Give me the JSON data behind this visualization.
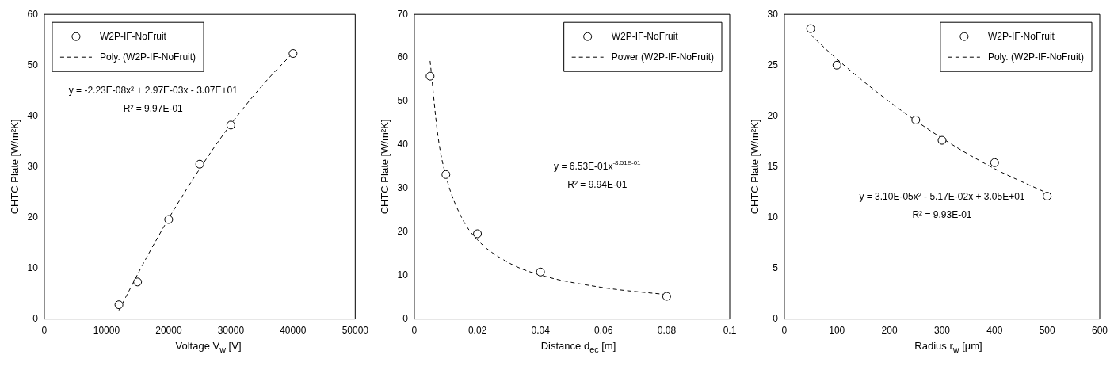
{
  "chart_data": [
    {
      "type": "scatter",
      "xlabel": "Voltage V$_{w}$ [V]",
      "ylabel": "CHTC Plate [W/m²K]",
      "xlim": [
        0,
        50000
      ],
      "xticks": [
        0,
        10000,
        20000,
        30000,
        40000,
        50000
      ],
      "ylim": [
        0,
        60
      ],
      "yticks": [
        0,
        10,
        20,
        30,
        40,
        50,
        60
      ],
      "grid": false,
      "legend": "top left",
      "annotations": [
        "y = -2.23E-08x² + 2.97E-03x - 3.07E+01",
        "R² = 9.97E-01"
      ],
      "series": [
        {
          "name": "W2P-IF-NoFruit",
          "type": "scatter",
          "color": "#000000",
          "marker": "circle",
          "x": [
            12000,
            15000,
            20000,
            25000,
            30000,
            40000
          ],
          "values": [
            2.8,
            7.3,
            19.6,
            30.5,
            38.2,
            52.3
          ]
        },
        {
          "name": "Poly. (W2P-IF-NoFruit)",
          "type": "line",
          "color": "#000000",
          "marker": "none",
          "line_style": "dashed",
          "x": [
            12000,
            16000,
            20000,
            24000,
            28000,
            32000,
            36000,
            40000
          ],
          "values": [
            1.7,
            11.1,
            19.8,
            27.7,
            35.0,
            41.5,
            47.3,
            52.4
          ]
        }
      ]
    },
    {
      "type": "scatter",
      "xlabel": "Distance d$_{ec}$ [m]",
      "ylabel": "CHTC Plate [W/m²K]",
      "xlim": [
        0,
        0.1
      ],
      "xticks": [
        0,
        0.02,
        0.04,
        0.06,
        0.08,
        0.1
      ],
      "ylim": [
        0,
        70
      ],
      "yticks": [
        0,
        10,
        20,
        30,
        40,
        50,
        60,
        70
      ],
      "grid": false,
      "legend": "top right",
      "annotations": [
        "y = 6.53E-01x$^{-8.51E-01}$",
        "R² = 9.94E-01"
      ],
      "series": [
        {
          "name": "W2P-IF-NoFruit",
          "type": "scatter",
          "color": "#000000",
          "marker": "circle",
          "x": [
            0.005,
            0.01,
            0.02,
            0.04,
            0.08
          ],
          "values": [
            55.8,
            33.2,
            19.6,
            10.8,
            5.2
          ]
        },
        {
          "name": "Power (W2P-IF-NoFruit)",
          "type": "line",
          "color": "#000000",
          "marker": "none",
          "line_style": "dashed",
          "x": [
            0.005,
            0.0075,
            0.01,
            0.015,
            0.02,
            0.03,
            0.04,
            0.06,
            0.08
          ],
          "values": [
            59.3,
            42.0,
            32.9,
            23.3,
            18.2,
            12.9,
            10.1,
            7.2,
            5.6
          ]
        }
      ]
    },
    {
      "type": "scatter",
      "xlabel": "Radius  r$_{w}$ [µm]",
      "ylabel": "CHTC Plate [W/m²K]",
      "xlim": [
        0,
        600
      ],
      "xticks": [
        0,
        100,
        200,
        300,
        400,
        500,
        600
      ],
      "ylim": [
        0,
        30
      ],
      "yticks": [
        0,
        5,
        10,
        15,
        20,
        25,
        30
      ],
      "grid": false,
      "legend": "top right",
      "annotations": [
        "y = 3.10E-05x² - 5.17E-02x + 3.05E+01",
        "R² = 9.93E-01"
      ],
      "series": [
        {
          "name": "W2P-IF-NoFruit",
          "type": "scatter",
          "color": "#000000",
          "marker": "circle",
          "x": [
            50,
            100,
            250,
            300,
            400,
            500
          ],
          "values": [
            28.6,
            25.0,
            19.6,
            17.6,
            15.4,
            12.1
          ]
        },
        {
          "name": "Poly. (W2P-IF-NoFruit)",
          "type": "line",
          "color": "#000000",
          "marker": "none",
          "line_style": "dashed",
          "x": [
            50,
            100,
            200,
            300,
            400,
            500
          ],
          "values": [
            28.0,
            25.6,
            21.4,
            17.8,
            14.8,
            12.4
          ]
        }
      ]
    }
  ]
}
